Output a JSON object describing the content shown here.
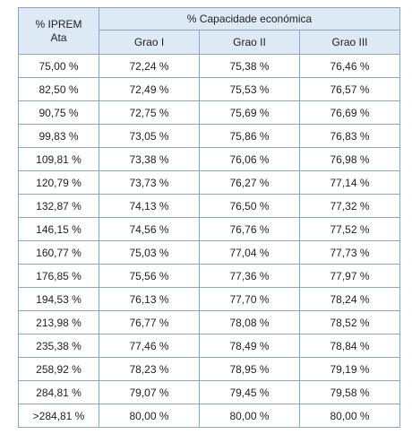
{
  "table": {
    "header": {
      "iprem_line1": "% IPREM",
      "iprem_line2": "Ata",
      "group": "% Capacidade económica",
      "sub": [
        "Grao I",
        "Grao II",
        "Grao III"
      ]
    },
    "rows": [
      [
        "75,00 %",
        "72,24 %",
        "75,38 %",
        "76,46 %"
      ],
      [
        "82,50 %",
        "72,49 %",
        "75,53 %",
        "76,57 %"
      ],
      [
        "90,75 %",
        "72,75 %",
        "75,69 %",
        "76,69 %"
      ],
      [
        "99,83 %",
        "73,05 %",
        "75,86 %",
        "76,83 %"
      ],
      [
        "109,81 %",
        "73,38 %",
        "76,06 %",
        "76,98 %"
      ],
      [
        "120,79 %",
        "73,73 %",
        "76,27 %",
        "77,14 %"
      ],
      [
        "132,87 %",
        "74,13 %",
        "76,50 %",
        "77,32 %"
      ],
      [
        "146,15 %",
        "74,56 %",
        "76,76 %",
        "77,52 %"
      ],
      [
        "160,77 %",
        "75,03 %",
        "77,04 %",
        "77,73 %"
      ],
      [
        "176,85 %",
        "75,56 %",
        "77,36 %",
        "77,97 %"
      ],
      [
        "194,53 %",
        "76,13 %",
        "77,70 %",
        "78,24 %"
      ],
      [
        "213,98 %",
        "76,77 %",
        "78,08 %",
        "78,52 %"
      ],
      [
        "235,38 %",
        "77,46 %",
        "78,49 %",
        "78,84 %"
      ],
      [
        "258,92 %",
        "78,23 %",
        "78,95 %",
        "79,19 %"
      ],
      [
        "284,81 %",
        "79,07 %",
        "79,45 %",
        "79,58 %"
      ],
      [
        ">284,81 %",
        "80,00 %",
        "80,00 %",
        "80,00 %"
      ]
    ]
  },
  "colors": {
    "header_background": "#dde9f5",
    "border": "#8ea7bf",
    "text": "#222222"
  }
}
